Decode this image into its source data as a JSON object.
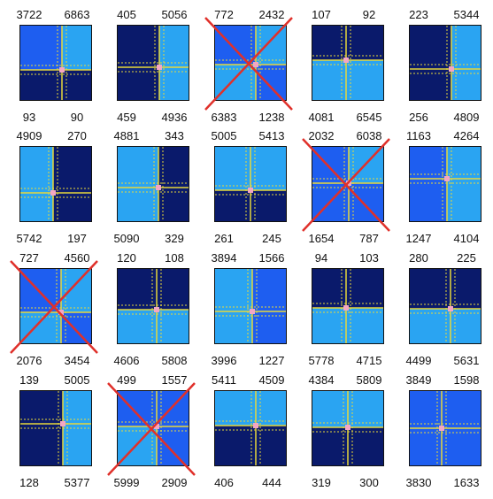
{
  "colors": {
    "dark": "#0a1a6b",
    "mid": "#1e5ef0",
    "light": "#2aa4f2",
    "line": "#e8d83a",
    "center": "#f3a6c4",
    "cross": "#e0302a"
  },
  "panels": [
    {
      "tl": "3722",
      "tr": "6863",
      "bl": "93",
      "br": "90",
      "crossed": false,
      "q": [
        "mid",
        "light",
        "dark",
        "dark"
      ]
    },
    {
      "tl": "405",
      "tr": "5056",
      "bl": "459",
      "br": "4936",
      "crossed": false,
      "q": [
        "dark",
        "light",
        "dark",
        "light"
      ]
    },
    {
      "tl": "772",
      "tr": "2432",
      "bl": "6383",
      "br": "1238",
      "crossed": true,
      "q": [
        "mid",
        "light",
        "light",
        "mid"
      ]
    },
    {
      "tl": "107",
      "tr": "92",
      "bl": "4081",
      "br": "6545",
      "crossed": false,
      "q": [
        "dark",
        "dark",
        "light",
        "light"
      ]
    },
    {
      "tl": "223",
      "tr": "5344",
      "bl": "256",
      "br": "4809",
      "crossed": false,
      "q": [
        "dark",
        "light",
        "dark",
        "light"
      ]
    },
    {
      "tl": "4909",
      "tr": "270",
      "bl": "5742",
      "br": "197",
      "crossed": false,
      "q": [
        "light",
        "dark",
        "light",
        "dark"
      ]
    },
    {
      "tl": "4881",
      "tr": "343",
      "bl": "5090",
      "br": "329",
      "crossed": false,
      "q": [
        "light",
        "dark",
        "light",
        "dark"
      ]
    },
    {
      "tl": "5005",
      "tr": "5413",
      "bl": "261",
      "br": "245",
      "crossed": false,
      "q": [
        "light",
        "light",
        "dark",
        "dark"
      ]
    },
    {
      "tl": "2032",
      "tr": "6038",
      "bl": "1654",
      "br": "787",
      "crossed": true,
      "q": [
        "mid",
        "light",
        "mid",
        "mid"
      ]
    },
    {
      "tl": "1163",
      "tr": "4264",
      "bl": "1247",
      "br": "4104",
      "crossed": false,
      "q": [
        "mid",
        "light",
        "mid",
        "light"
      ]
    },
    {
      "tl": "727",
      "tr": "4560",
      "bl": "2076",
      "br": "3454",
      "crossed": true,
      "q": [
        "mid",
        "light",
        "light",
        "mid"
      ]
    },
    {
      "tl": "120",
      "tr": "108",
      "bl": "4606",
      "br": "5808",
      "crossed": false,
      "q": [
        "dark",
        "dark",
        "light",
        "light"
      ]
    },
    {
      "tl": "3894",
      "tr": "1566",
      "bl": "3996",
      "br": "1227",
      "crossed": false,
      "q": [
        "light",
        "mid",
        "light",
        "mid"
      ]
    },
    {
      "tl": "94",
      "tr": "103",
      "bl": "5778",
      "br": "4715",
      "crossed": false,
      "q": [
        "dark",
        "dark",
        "light",
        "light"
      ]
    },
    {
      "tl": "280",
      "tr": "225",
      "bl": "4499",
      "br": "5631",
      "crossed": false,
      "q": [
        "dark",
        "dark",
        "light",
        "light"
      ]
    },
    {
      "tl": "139",
      "tr": "5005",
      "bl": "128",
      "br": "5377",
      "crossed": false,
      "q": [
        "dark",
        "light",
        "dark",
        "light"
      ]
    },
    {
      "tl": "499",
      "tr": "1557",
      "bl": "5999",
      "br": "2909",
      "crossed": true,
      "q": [
        "mid",
        "mid",
        "light",
        "mid"
      ]
    },
    {
      "tl": "5411",
      "tr": "4509",
      "bl": "406",
      "br": "444",
      "crossed": false,
      "q": [
        "light",
        "light",
        "dark",
        "dark"
      ]
    },
    {
      "tl": "4384",
      "tr": "5809",
      "bl": "319",
      "br": "300",
      "crossed": false,
      "q": [
        "light",
        "light",
        "dark",
        "dark"
      ]
    },
    {
      "tl": "3849",
      "tr": "1598",
      "bl": "3830",
      "br": "1633",
      "crossed": false,
      "q": [
        "mid",
        "mid",
        "mid",
        "mid"
      ]
    }
  ]
}
